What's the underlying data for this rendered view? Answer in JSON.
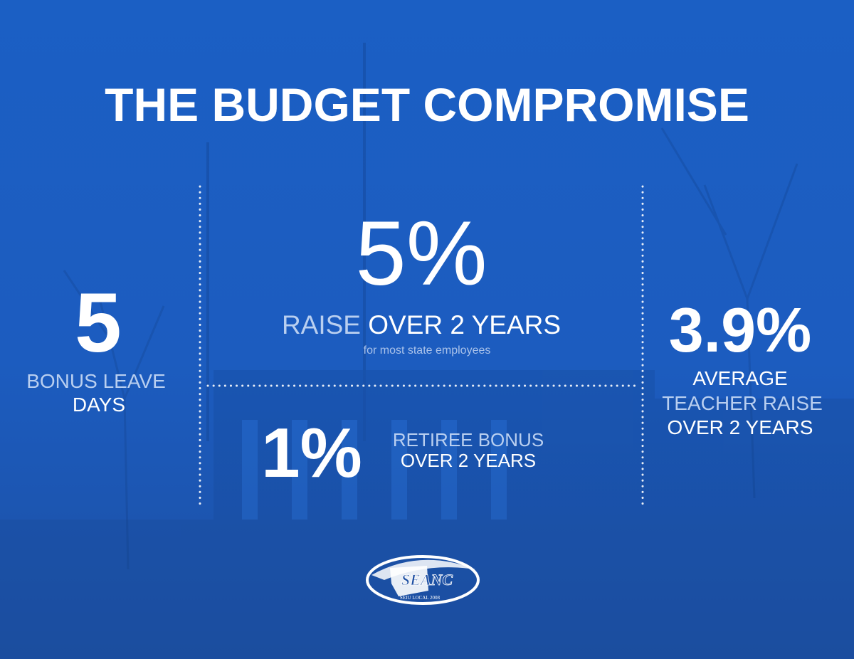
{
  "title": "THE BUDGET COMPROMISE",
  "left": {
    "figure": "5",
    "label_line1": "BONUS LEAVE",
    "label_line2": "DAYS"
  },
  "center": {
    "figure": "5%",
    "label_highlight": "RAISE",
    "label_rest": "OVER 2 YEARS",
    "note": "for most state employees"
  },
  "bottom": {
    "figure": "1%",
    "label_line1": "RETIREE BONUS",
    "label_line2": "OVER 2 YEARS"
  },
  "right": {
    "figure": "3.9%",
    "label_line1": "AVERAGE",
    "label_line2": "TEACHER RAISE",
    "label_line3": "OVER 2 YEARS"
  },
  "logo": {
    "name": "SEANC",
    "subtitle": "SEIU LOCAL 2008"
  }
}
